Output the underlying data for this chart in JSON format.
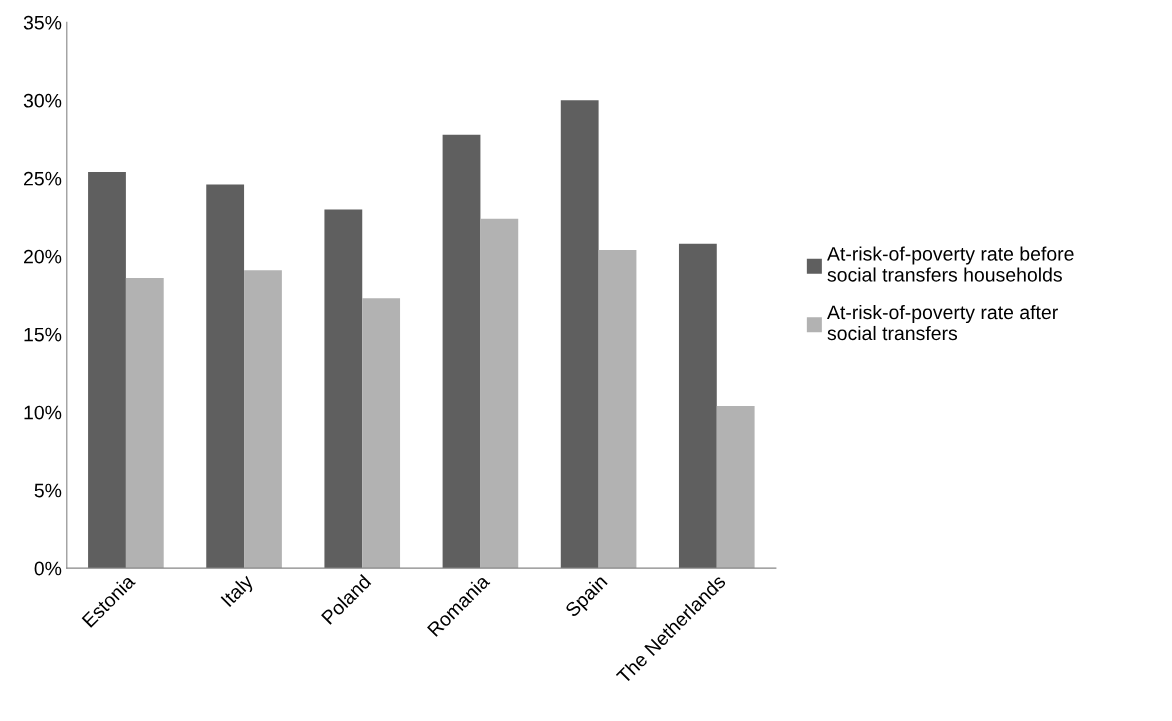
{
  "chart_data": {
    "type": "bar",
    "categories": [
      "Estonia",
      "Italy",
      "Poland",
      "Romania",
      "Spain",
      "The Netherlands"
    ],
    "series": [
      {
        "name": "At-risk-of-poverty rate before\nsocial transfers households",
        "color": "#5f5f5f",
        "values": [
          25.4,
          24.6,
          23.0,
          27.8,
          30.0,
          20.8
        ]
      },
      {
        "name": "At-risk-of-poverty rate after\nsocial transfers",
        "color": "#b2b2b2",
        "values": [
          18.6,
          19.1,
          17.3,
          22.4,
          20.4,
          10.4
        ]
      }
    ],
    "ylim": [
      0,
      35
    ],
    "yticks": [
      {
        "value": 0,
        "label": "0%"
      },
      {
        "value": 5,
        "label": "5%"
      },
      {
        "value": 10,
        "label": "10%"
      },
      {
        "value": 15,
        "label": "15%"
      },
      {
        "value": 20,
        "label": "20%"
      },
      {
        "value": 25,
        "label": "25%"
      },
      {
        "value": 30,
        "label": "30%"
      },
      {
        "value": 35,
        "label": "35%"
      }
    ],
    "grid": false,
    "legend": "right"
  }
}
